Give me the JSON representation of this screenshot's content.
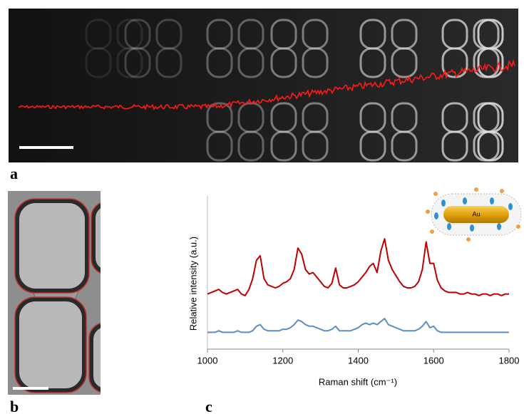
{
  "panel_labels": [
    "a",
    "b",
    "c"
  ],
  "inset_label": "Au",
  "chart_data": {
    "type": "line",
    "x_label": "Raman shift (cm⁻¹)",
    "y_label": "Relative intensity (a.u.)",
    "xlim": [
      1000,
      1800
    ],
    "xticks": [
      1000,
      1200,
      1400,
      1600,
      1800
    ],
    "ylim": [
      0,
      10
    ],
    "x": [
      1000,
      1010,
      1020,
      1030,
      1040,
      1050,
      1060,
      1070,
      1080,
      1090,
      1100,
      1110,
      1120,
      1130,
      1140,
      1150,
      1160,
      1170,
      1180,
      1190,
      1200,
      1210,
      1220,
      1230,
      1240,
      1250,
      1260,
      1270,
      1280,
      1290,
      1300,
      1310,
      1320,
      1330,
      1340,
      1350,
      1360,
      1370,
      1380,
      1390,
      1400,
      1410,
      1420,
      1430,
      1440,
      1450,
      1460,
      1470,
      1480,
      1490,
      1500,
      1510,
      1520,
      1530,
      1540,
      1550,
      1560,
      1570,
      1580,
      1590,
      1600,
      1610,
      1620,
      1630,
      1640,
      1650,
      1660,
      1670,
      1680,
      1690,
      1700,
      1710,
      1720,
      1730,
      1740,
      1750,
      1760,
      1770,
      1780,
      1790,
      1800
    ],
    "series": [
      {
        "color": "#c00000",
        "values": [
          3.6,
          3.7,
          3.8,
          3.9,
          3.7,
          3.6,
          3.7,
          3.8,
          3.9,
          3.6,
          3.5,
          3.9,
          4.6,
          5.8,
          6.1,
          4.6,
          4.2,
          4.1,
          4.0,
          4.1,
          4.3,
          4.4,
          4.6,
          5.2,
          6.6,
          6.2,
          5.2,
          4.9,
          5.0,
          4.7,
          4.4,
          4.1,
          4.0,
          4.3,
          5.3,
          4.2,
          4.0,
          4.0,
          4.1,
          4.2,
          4.4,
          4.7,
          5.0,
          5.4,
          5.6,
          5.0,
          6.4,
          7.2,
          5.8,
          5.2,
          4.8,
          4.4,
          4.1,
          4.0,
          4.0,
          4.1,
          4.4,
          5.2,
          7.0,
          5.6,
          5.6,
          4.5,
          4.0,
          3.8,
          3.7,
          3.7,
          3.7,
          3.6,
          3.6,
          3.7,
          3.6,
          3.6,
          3.5,
          3.6,
          3.6,
          3.5,
          3.6,
          3.6,
          3.5,
          3.6,
          3.6
        ]
      },
      {
        "color": "#5b8ec4",
        "values": [
          1.1,
          1.1,
          1.1,
          1.2,
          1.1,
          1.1,
          1.1,
          1.1,
          1.2,
          1.1,
          1.1,
          1.1,
          1.2,
          1.5,
          1.6,
          1.3,
          1.2,
          1.2,
          1.2,
          1.2,
          1.3,
          1.3,
          1.4,
          1.6,
          1.9,
          1.8,
          1.6,
          1.5,
          1.5,
          1.4,
          1.3,
          1.2,
          1.2,
          1.3,
          1.5,
          1.2,
          1.2,
          1.2,
          1.2,
          1.3,
          1.4,
          1.6,
          1.7,
          1.6,
          1.7,
          1.6,
          1.8,
          2.0,
          1.6,
          1.5,
          1.4,
          1.3,
          1.2,
          1.2,
          1.2,
          1.2,
          1.3,
          1.5,
          1.8,
          1.4,
          1.5,
          1.2,
          1.1,
          1.1,
          1.1,
          1.1,
          1.1,
          1.1,
          1.1,
          1.1,
          1.1,
          1.1,
          1.1,
          1.1,
          1.1,
          1.1,
          1.1,
          1.1,
          1.1,
          1.1,
          1.1
        ]
      }
    ]
  }
}
